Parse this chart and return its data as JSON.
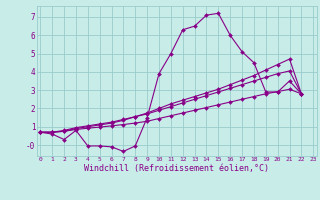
{
  "xlabel": "Windchill (Refroidissement éolien,°C)",
  "bg_color": "#c8ece8",
  "line_color": "#880088",
  "grid_color": "#99cccc",
  "lines": [
    [
      0.7,
      0.6,
      0.3,
      0.8,
      -0.05,
      -0.05,
      -0.1,
      -0.35,
      -0.05,
      1.5,
      3.9,
      5.0,
      6.3,
      6.5,
      7.1,
      7.2,
      6.0,
      5.1,
      4.5,
      2.9,
      2.9,
      3.5,
      2.8
    ],
    [
      0.7,
      0.7,
      0.75,
      0.9,
      1.0,
      1.1,
      1.2,
      1.35,
      1.55,
      1.75,
      2.0,
      2.25,
      2.45,
      2.65,
      2.85,
      3.05,
      3.3,
      3.55,
      3.8,
      4.1,
      4.4,
      4.7,
      2.8
    ],
    [
      0.7,
      0.7,
      0.8,
      0.95,
      1.05,
      1.15,
      1.25,
      1.4,
      1.55,
      1.7,
      1.9,
      2.1,
      2.3,
      2.5,
      2.7,
      2.9,
      3.1,
      3.3,
      3.5,
      3.7,
      3.9,
      4.05,
      2.8
    ],
    [
      0.7,
      0.7,
      0.75,
      0.85,
      0.92,
      0.98,
      1.05,
      1.12,
      1.2,
      1.3,
      1.45,
      1.6,
      1.75,
      1.9,
      2.05,
      2.2,
      2.35,
      2.5,
      2.65,
      2.8,
      2.92,
      3.05,
      2.8
    ]
  ],
  "xmin": 0,
  "xmax": 23,
  "ymin": -0.6,
  "ymax": 7.6,
  "yticks": [
    0,
    1,
    2,
    3,
    4,
    5,
    6,
    7
  ],
  "ytick_labels": [
    "-0",
    "1",
    "2",
    "3",
    "4",
    "5",
    "6",
    "7"
  ],
  "xticks": [
    0,
    1,
    2,
    3,
    4,
    5,
    6,
    7,
    8,
    9,
    10,
    11,
    12,
    13,
    14,
    15,
    16,
    17,
    18,
    19,
    20,
    21,
    22,
    23
  ],
  "markersize": 2.0,
  "linewidth": 0.8
}
